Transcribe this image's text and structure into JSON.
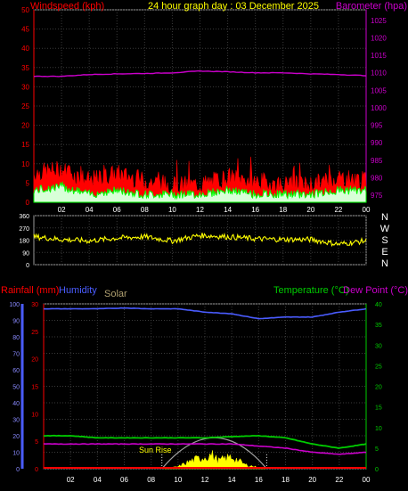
{
  "header": {
    "title": "24 hour graph day : 03 December 2025",
    "left_label": "Windspeed (kph)",
    "right_label": "Barometer (hpa)"
  },
  "time_ticks": [
    "02",
    "04",
    "06",
    "08",
    "10",
    "12",
    "14",
    "16",
    "18",
    "20",
    "22",
    "00"
  ],
  "colors": {
    "wind": "#ff0000",
    "gust": "#00ff00",
    "barometer": "#cc00cc",
    "direction": "#ffff00",
    "humidity": "#4a5cff",
    "rain": "#ff0000",
    "solar": "#ffff00",
    "temperature": "#00cc00",
    "dewpoint": "#cc00cc",
    "sun_arc": "#a0a0a0",
    "grid": "#3a3a3a"
  },
  "chart_data": [
    {
      "type": "line",
      "id": "wind_baro",
      "title": "24 hour graph day : 03 December 2025",
      "ylabel_left": "Windspeed (kph)",
      "ylabel_right": "Barometer (hpa)",
      "left_ticks": [
        0,
        5,
        10,
        15,
        20,
        25,
        30,
        35,
        40,
        45,
        50
      ],
      "right_ticks": [
        975,
        980,
        985,
        990,
        995,
        1000,
        1005,
        1010,
        1015,
        1020,
        1025
      ],
      "ylim_left": [
        0,
        50
      ],
      "ylim_right": [
        973,
        1028
      ],
      "grid": true,
      "x_hours": [
        0,
        2,
        4,
        6,
        8,
        10,
        12,
        14,
        16,
        18,
        20,
        22,
        24
      ],
      "series": [
        {
          "name": "Windspeed (kph)",
          "axis": "left",
          "y": [
            7,
            8,
            5,
            7,
            5,
            4,
            4,
            6,
            5,
            4,
            4,
            6,
            5
          ]
        },
        {
          "name": "Gust",
          "axis": "left",
          "y": [
            2,
            3,
            1,
            2,
            1,
            1,
            1,
            2,
            1,
            1,
            1,
            2,
            2
          ]
        },
        {
          "name": "Barometer (hpa)",
          "axis": "right",
          "y": [
            1009,
            1009,
            1009.5,
            1009.7,
            1009.8,
            1010,
            1010.5,
            1010.3,
            1010,
            1010,
            1009.7,
            1009.5,
            1009.2
          ]
        }
      ]
    },
    {
      "type": "line",
      "id": "wind_direction",
      "ylabel_right": [
        "N",
        "W",
        "S",
        "E",
        "N"
      ],
      "left_ticks": [
        0,
        90,
        180,
        270,
        360
      ],
      "ylim": [
        0,
        360
      ],
      "grid": true,
      "x_hours": [
        0,
        2,
        4,
        6,
        8,
        10,
        12,
        14,
        16,
        18,
        20,
        22,
        24
      ],
      "series": [
        {
          "name": "Wind direction",
          "y": [
            205,
            185,
            175,
            195,
            205,
            175,
            215,
            205,
            190,
            185,
            185,
            150,
            175
          ]
        }
      ]
    },
    {
      "type": "line",
      "id": "rain_hum_temp",
      "left_label": "Rainfall (mm)",
      "humidity_label": "Humidity",
      "solar_label": "Solar",
      "right_label_temp": "Temperature (°C)",
      "right_label_dew": "Dew Point (°C)",
      "sunrise_label": "Sun Rise",
      "humidity_ticks": [
        0,
        10,
        20,
        30,
        40,
        50,
        60,
        70,
        80,
        90,
        100
      ],
      "rain_ticks": [
        0,
        5,
        10,
        15,
        20,
        25,
        30
      ],
      "temp_ticks": [
        0,
        5,
        10,
        15,
        20,
        25,
        30,
        35,
        40
      ],
      "ylim_humidity": [
        0,
        100
      ],
      "ylim_rain": [
        0,
        30
      ],
      "ylim_temp": [
        0,
        40
      ],
      "grid": true,
      "x_hours": [
        0,
        2,
        4,
        6,
        8,
        10,
        12,
        14,
        16,
        18,
        20,
        22,
        24
      ],
      "series": [
        {
          "name": "Humidity",
          "axis": "humidity",
          "y": [
            97,
            97,
            97,
            97.5,
            97,
            97,
            95,
            94,
            91,
            92,
            92,
            95,
            97
          ]
        },
        {
          "name": "Temperature (°C)",
          "axis": "temp",
          "y": [
            8,
            8,
            7.5,
            7.5,
            7.5,
            7.5,
            7.5,
            7.8,
            8,
            7.5,
            6,
            5,
            6
          ]
        },
        {
          "name": "Dew Point (°C)",
          "axis": "temp",
          "y": [
            6,
            6,
            6,
            6,
            6,
            6,
            6,
            6,
            5.5,
            5,
            4,
            3.5,
            4
          ]
        },
        {
          "name": "Rainfall (mm)",
          "axis": "rain",
          "y": [
            0,
            0,
            0,
            0,
            0,
            0,
            0,
            0,
            0,
            0,
            0,
            0,
            0
          ]
        },
        {
          "name": "Solar",
          "axis": "temp",
          "x": [
            9,
            10,
            11,
            12,
            12.5,
            13,
            14,
            15,
            16.5
          ],
          "y": [
            0,
            0.5,
            2,
            3,
            3.5,
            2,
            3,
            1,
            0
          ]
        }
      ],
      "sun_window": {
        "rise": 8.8,
        "set": 16.6
      }
    }
  ]
}
